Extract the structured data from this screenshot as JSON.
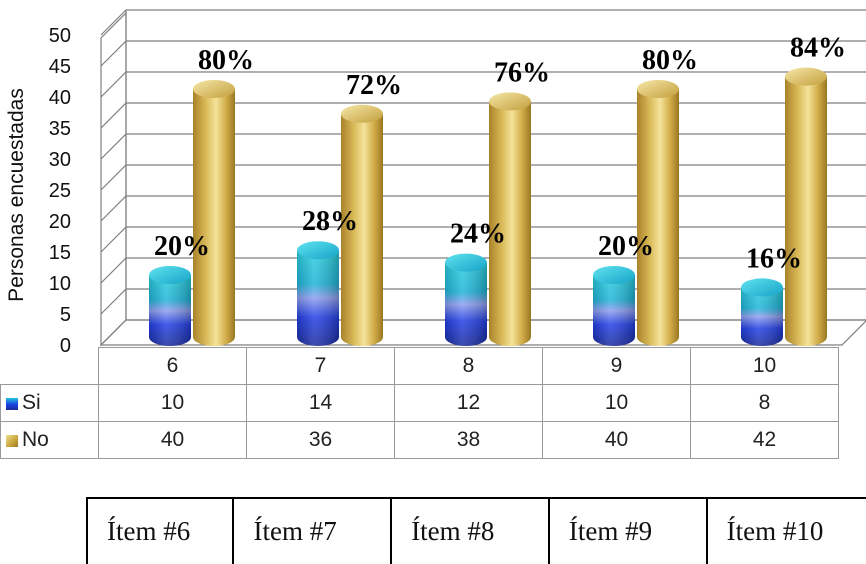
{
  "chart_data": {
    "type": "bar",
    "style": "3d-cylinder",
    "ylabel": "Personas encuestadas",
    "ylim": [
      0,
      50
    ],
    "yticks": [
      "0",
      "5",
      "10",
      "15",
      "20",
      "25",
      "30",
      "35",
      "40",
      "45",
      "50"
    ],
    "categories": [
      "6",
      "7",
      "8",
      "9",
      "10"
    ],
    "series": [
      {
        "name": "Si",
        "values": [
          10,
          14,
          12,
          10,
          8
        ],
        "labels": [
          "20%",
          "28%",
          "24%",
          "20%",
          "16%"
        ],
        "color": "#1e78d8"
      },
      {
        "name": "No",
        "values": [
          40,
          36,
          38,
          40,
          42
        ],
        "labels": [
          "80%",
          "72%",
          "76%",
          "80%",
          "84%"
        ],
        "color": "#d7b954"
      }
    ],
    "grid": true,
    "legend": "data-table"
  },
  "items_table": [
    "Ítem #6",
    "Ítem #7",
    "Ítem #8",
    "Ítem #9",
    "Ítem #10"
  ]
}
